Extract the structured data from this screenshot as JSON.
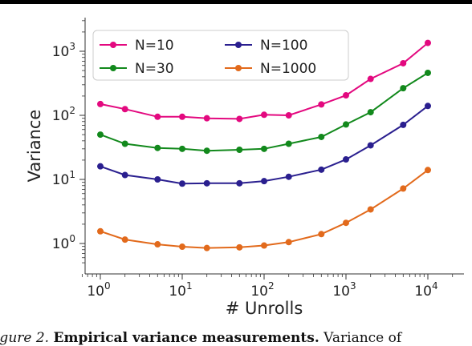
{
  "chart_data": {
    "type": "line",
    "xlabel": "# Unrolls",
    "ylabel": "Variance",
    "xscale": "log",
    "yscale": "log",
    "xlim": [
      0.6,
      20000
    ],
    "ylim": [
      0.5,
      3000
    ],
    "xticks": [
      {
        "value": 1,
        "base": "10",
        "exp": "0"
      },
      {
        "value": 10,
        "base": "10",
        "exp": "1"
      },
      {
        "value": 100,
        "base": "10",
        "exp": "2"
      },
      {
        "value": 1000,
        "base": "10",
        "exp": "3"
      },
      {
        "value": 10000,
        "base": "10",
        "exp": "4"
      }
    ],
    "yticks": [
      {
        "value": 1,
        "base": "10",
        "exp": "0"
      },
      {
        "value": 10,
        "base": "10",
        "exp": "1"
      },
      {
        "value": 100,
        "base": "10",
        "exp": "2"
      },
      {
        "value": 1000,
        "base": "10",
        "exp": "3"
      }
    ],
    "grid": false,
    "legend": "top, two columns",
    "x": [
      1,
      2,
      5,
      10,
      20,
      50,
      100,
      200,
      500,
      1000,
      2000,
      5000,
      10000
    ],
    "series": [
      {
        "name": "N=10",
        "color": "#e3097f",
        "values": [
          150,
          125,
          95,
          95,
          90,
          88,
          102,
          100,
          148,
          205,
          370,
          650,
          1350
        ]
      },
      {
        "name": "N=30",
        "color": "#12891c",
        "values": [
          50,
          36,
          31,
          30,
          28,
          29,
          30,
          36,
          46,
          72,
          112,
          265,
          460
        ]
      },
      {
        "name": "N=100",
        "color": "#2a1f8f",
        "values": [
          16,
          11.7,
          10,
          8.6,
          8.7,
          8.7,
          9.4,
          11,
          14.2,
          20.5,
          34,
          71,
          140
        ]
      },
      {
        "name": "N=1000",
        "color": "#e26a1c",
        "values": [
          1.55,
          1.15,
          0.97,
          0.89,
          0.85,
          0.87,
          0.93,
          1.05,
          1.4,
          2.1,
          3.4,
          7.2,
          14
        ]
      }
    ]
  },
  "caption": {
    "lead": "igure 2.",
    "bold": "Empirical variance measurements.",
    "rest": "Variance of"
  }
}
